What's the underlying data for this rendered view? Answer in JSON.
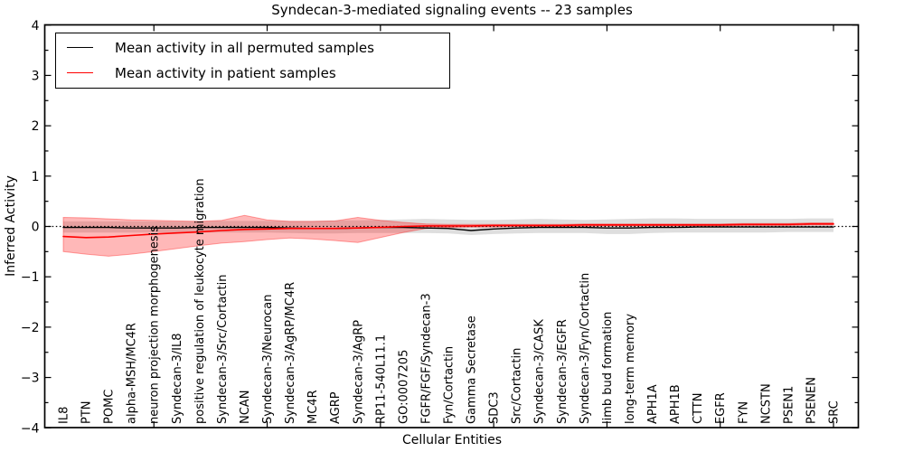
{
  "chart_data": {
    "type": "line",
    "title": "Syndecan-3-mediated signaling events -- 23 samples",
    "xlabel": "Cellular Entities",
    "ylabel": "Inferred Activity",
    "ylim": [
      -4,
      4
    ],
    "yticks": [
      -4,
      -3,
      -2,
      -1,
      0,
      1,
      2,
      3,
      4
    ],
    "y_minor_step": 0.5,
    "xtick_every": 5,
    "grid": false,
    "legend_position": "upper left",
    "zero_line": {
      "y": 0,
      "style": "dotted",
      "color": "#000000"
    },
    "categories": [
      "IL8",
      "PTN",
      "POMC",
      "alpha-MSH/MC4R",
      "neuron projection morphogenesis",
      "Syndecan-3/IL8",
      "positive regulation of leukocyte migration",
      "Syndecan-3/Src/Cortactin",
      "NCAN",
      "Syndecan-3/Neurocan",
      "Syndecan-3/AgRP/MC4R",
      "MC4R",
      "AGRP",
      "Syndecan-3/AgRP",
      "RP11-540L11.1",
      "GO:0007205",
      "FGFR/FGF/Syndecan-3",
      "Fyn/Cortactin",
      "Gamma Secretase",
      "SDC3",
      "Src/Cortactin",
      "Syndecan-3/CASK",
      "Syndecan-3/EGFR",
      "Syndecan-3/Fyn/Cortactin",
      "limb bud formation",
      "long-term memory",
      "APH1A",
      "APH1B",
      "CTTN",
      "EGFR",
      "FYN",
      "NCSTN",
      "PSEN1",
      "PSENEN",
      "SRC"
    ],
    "series": [
      {
        "name": "Mean activity in all permuted samples",
        "color": "#000000",
        "band_color": "#000000",
        "band_opacity": 0.13,
        "mean": [
          -0.02,
          -0.02,
          -0.02,
          -0.03,
          -0.03,
          -0.03,
          -0.02,
          -0.02,
          -0.02,
          -0.02,
          -0.03,
          -0.04,
          -0.04,
          -0.03,
          -0.02,
          -0.02,
          -0.03,
          -0.04,
          -0.08,
          -0.05,
          -0.03,
          -0.02,
          -0.02,
          -0.02,
          -0.03,
          -0.03,
          -0.02,
          -0.02,
          -0.01,
          -0.01,
          -0.01,
          -0.01,
          -0.01,
          -0.01,
          -0.01
        ],
        "band_upper": [
          0.1,
          0.1,
          0.1,
          0.1,
          0.1,
          0.1,
          0.1,
          0.11,
          0.11,
          0.11,
          0.11,
          0.11,
          0.12,
          0.12,
          0.13,
          0.14,
          0.15,
          0.14,
          0.13,
          0.13,
          0.14,
          0.15,
          0.14,
          0.13,
          0.14,
          0.15,
          0.16,
          0.16,
          0.15,
          0.15,
          0.15,
          0.15,
          0.15,
          0.16,
          0.16
        ],
        "band_lower": [
          -0.12,
          -0.12,
          -0.12,
          -0.12,
          -0.12,
          -0.12,
          -0.12,
          -0.12,
          -0.12,
          -0.12,
          -0.13,
          -0.14,
          -0.14,
          -0.13,
          -0.13,
          -0.13,
          -0.13,
          -0.14,
          -0.17,
          -0.15,
          -0.14,
          -0.13,
          -0.13,
          -0.13,
          -0.15,
          -0.15,
          -0.13,
          -0.12,
          -0.12,
          -0.12,
          -0.12,
          -0.12,
          -0.11,
          -0.11,
          -0.11
        ]
      },
      {
        "name": "Mean activity in patient samples",
        "color": "#ff0000",
        "band_color": "#ff0000",
        "band_opacity": 0.28,
        "mean": [
          -0.2,
          -0.22,
          -0.21,
          -0.18,
          -0.15,
          -0.13,
          -0.11,
          -0.08,
          -0.06,
          -0.05,
          -0.04,
          -0.04,
          -0.04,
          -0.03,
          -0.02,
          0.0,
          0.01,
          0.01,
          0.01,
          0.02,
          0.02,
          0.02,
          0.02,
          0.03,
          0.03,
          0.03,
          0.03,
          0.03,
          0.03,
          0.03,
          0.04,
          0.04,
          0.04,
          0.05,
          0.05
        ],
        "band_upper": [
          0.18,
          0.17,
          0.15,
          0.13,
          0.12,
          0.11,
          0.1,
          0.12,
          0.22,
          0.13,
          0.1,
          0.1,
          0.11,
          0.18,
          0.12,
          0.08,
          0.05,
          0.04,
          0.04,
          0.04,
          0.04,
          0.04,
          0.04,
          0.05,
          0.05,
          0.05,
          0.05,
          0.05,
          0.05,
          0.05,
          0.06,
          0.06,
          0.06,
          0.07,
          0.07
        ],
        "band_lower": [
          -0.5,
          -0.55,
          -0.59,
          -0.55,
          -0.5,
          -0.44,
          -0.38,
          -0.33,
          -0.3,
          -0.26,
          -0.23,
          -0.25,
          -0.28,
          -0.32,
          -0.22,
          -0.12,
          -0.04,
          -0.02,
          -0.01,
          -0.01,
          0.0,
          0.0,
          0.0,
          0.0,
          0.01,
          0.01,
          0.01,
          0.01,
          0.01,
          0.01,
          0.02,
          0.02,
          0.02,
          0.03,
          0.03
        ]
      }
    ],
    "legend": [
      {
        "label": "Mean activity in all permuted samples",
        "color": "#000000"
      },
      {
        "label": "Mean activity in patient samples",
        "color": "#ff0000"
      }
    ]
  }
}
